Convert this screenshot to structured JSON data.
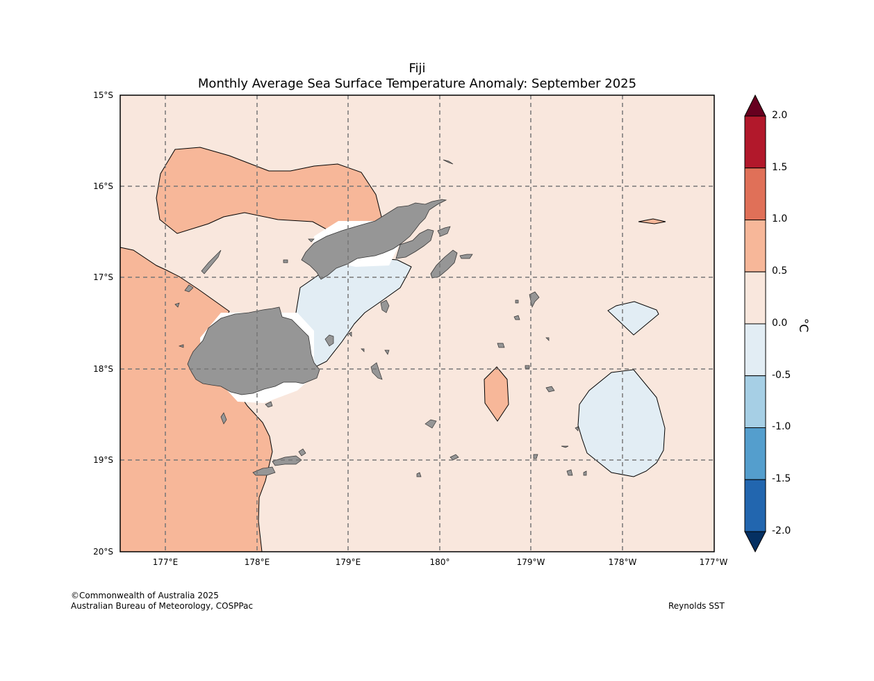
{
  "title_region": "Fiji",
  "title_main": "Monthly Average Sea Surface Temperature Anomaly: September 2025",
  "lat_labels": [
    "15°S",
    "16°S",
    "17°S",
    "18°S",
    "19°S",
    "20°S"
  ],
  "lon_labels": [
    "177°E",
    "178°E",
    "179°E",
    "180°",
    "179°W",
    "178°W",
    "177°W"
  ],
  "colorbar": {
    "ticks": [
      "2.0",
      "1.5",
      "1.0",
      "0.5",
      "0.0",
      "-0.5",
      "-1.0",
      "-1.5",
      "-2.0"
    ],
    "unit": "°C",
    "colors": [
      "#67001f",
      "#b2182b",
      "#e07058",
      "#f7b799",
      "#f9e7dd",
      "#e2edf4",
      "#a6cfe5",
      "#549ecd",
      "#2266af",
      "#053062"
    ]
  },
  "colors": {
    "land": "#969696",
    "ocean_base": "#f9e7dd",
    "warm_contour": "#f7b799",
    "cool_contour": "#e2edf4"
  },
  "credit_line1": "©Commonwealth of Australia 2025",
  "credit_line2": "Australian Bureau of Meteorology, COSPPac",
  "data_source": "Reynolds SST"
}
